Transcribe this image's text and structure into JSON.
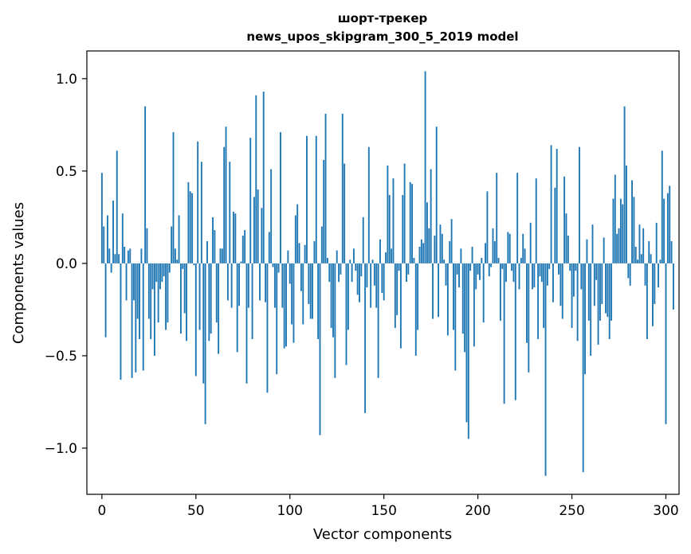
{
  "chart_data": {
    "type": "bar",
    "title": "шорт-трекер",
    "subtitle": "news_upos_skipgram_300_5_2019 model",
    "xlabel": "Vector components",
    "ylabel": "Components values",
    "xlim": [
      -8,
      307
    ],
    "ylim": [
      -1.25,
      1.15
    ],
    "xticks": [
      0,
      50,
      100,
      150,
      200,
      250,
      300
    ],
    "yticks": [
      -1.0,
      -0.5,
      0.0,
      0.5,
      1.0
    ],
    "ytick_labels": [
      "−1.0",
      "−0.5",
      "0.0",
      "0.5",
      "1.0"
    ],
    "grid": false,
    "bar_color": "#1f77b4",
    "values": [
      0.49,
      0.2,
      -0.4,
      0.26,
      0.08,
      -0.05,
      0.34,
      0.05,
      0.61,
      0.05,
      -0.63,
      0.27,
      0.09,
      -0.2,
      0.07,
      0.08,
      -0.62,
      -0.2,
      -0.59,
      -0.3,
      -0.41,
      0.08,
      -0.58,
      0.85,
      0.19,
      -0.3,
      -0.41,
      -0.14,
      -0.5,
      -0.1,
      -0.32,
      -0.14,
      -0.1,
      -0.07,
      -0.36,
      -0.32,
      -0.05,
      0.2,
      0.71,
      0.08,
      0.02,
      0.26,
      -0.38,
      -0.03,
      -0.27,
      -0.42,
      0.44,
      0.39,
      0.38,
      -0.01,
      -0.61,
      0.66,
      -0.36,
      0.55,
      -0.65,
      -0.87,
      0.12,
      -0.42,
      -0.38,
      0.25,
      0.18,
      -0.32,
      -0.49,
      0.08,
      0.08,
      0.63,
      0.74,
      -0.2,
      0.55,
      -0.24,
      0.28,
      0.27,
      -0.48,
      -0.23,
      0.01,
      0.15,
      0.18,
      -0.65,
      -0.24,
      0.68,
      -0.41,
      0.36,
      0.91,
      0.4,
      -0.2,
      0.3,
      0.93,
      -0.21,
      -0.7,
      0.17,
      0.51,
      -0.02,
      -0.24,
      -0.6,
      -0.05,
      0.71,
      -0.24,
      -0.46,
      -0.45,
      0.07,
      -0.11,
      -0.33,
      -0.43,
      0.26,
      0.32,
      0.11,
      -0.15,
      -0.33,
      0.1,
      0.69,
      -0.22,
      -0.3,
      -0.3,
      0.12,
      0.69,
      -0.41,
      -0.93,
      0.2,
      0.56,
      0.81,
      0.03,
      -0.1,
      -0.35,
      -0.4,
      -0.62,
      0.07,
      -0.1,
      -0.06,
      0.81,
      0.54,
      -0.55,
      -0.36,
      0.02,
      -0.1,
      0.08,
      -0.04,
      -0.17,
      -0.21,
      -0.07,
      0.25,
      -0.81,
      -0.13,
      0.63,
      -0.24,
      0.02,
      -0.12,
      -0.24,
      -0.62,
      0.13,
      -0.16,
      -0.2,
      0.06,
      0.53,
      0.37,
      0.08,
      0.46,
      -0.35,
      -0.28,
      -0.04,
      -0.46,
      0.37,
      0.54,
      -0.1,
      -0.06,
      0.44,
      0.43,
      0.03,
      -0.5,
      -0.36,
      0.09,
      0.13,
      0.11,
      1.04,
      0.33,
      0.19,
      0.51,
      -0.3,
      0.15,
      0.74,
      -0.29,
      0.21,
      0.16,
      0.02,
      -0.12,
      -0.39,
      0.12,
      0.24,
      -0.36,
      -0.58,
      -0.06,
      -0.13,
      0.08,
      -0.38,
      -0.48,
      -0.86,
      -0.95,
      -0.04,
      0.09,
      -0.45,
      -0.14,
      -0.06,
      -0.09,
      0.03,
      -0.32,
      0.11,
      0.39,
      -0.07,
      -0.02,
      0.19,
      0.12,
      0.49,
      0.03,
      -0.31,
      -0.03,
      -0.76,
      -0.1,
      0.17,
      0.16,
      -0.04,
      -0.1,
      -0.74,
      0.49,
      -0.14,
      0.03,
      0.16,
      0.08,
      -0.43,
      -0.59,
      0.22,
      -0.14,
      -0.13,
      0.46,
      -0.41,
      -0.07,
      -0.1,
      -0.35,
      -1.15,
      -0.12,
      -0.03,
      0.64,
      -0.21,
      0.41,
      0.62,
      -0.06,
      -0.23,
      -0.3,
      0.47,
      0.27,
      0.15,
      -0.04,
      -0.35,
      -0.18,
      -0.04,
      -0.42,
      0.63,
      -0.14,
      -1.13,
      -0.6,
      0.13,
      -0.31,
      -0.5,
      0.21,
      -0.23,
      -0.09,
      -0.44,
      -0.31,
      -0.22,
      0.14,
      -0.27,
      -0.29,
      -0.41,
      -0.31,
      0.35,
      0.48,
      0.16,
      0.19,
      0.35,
      0.32,
      0.85,
      0.53,
      -0.08,
      -0.12,
      0.45,
      0.36,
      0.09,
      0.02,
      0.21,
      0.05,
      0.19,
      -0.12,
      -0.41,
      0.12,
      0.05,
      -0.34,
      -0.22,
      0.22,
      -0.13,
      0.02,
      0.61,
      0.35,
      -0.87,
      0.38,
      0.42,
      0.12,
      -0.25
    ]
  }
}
